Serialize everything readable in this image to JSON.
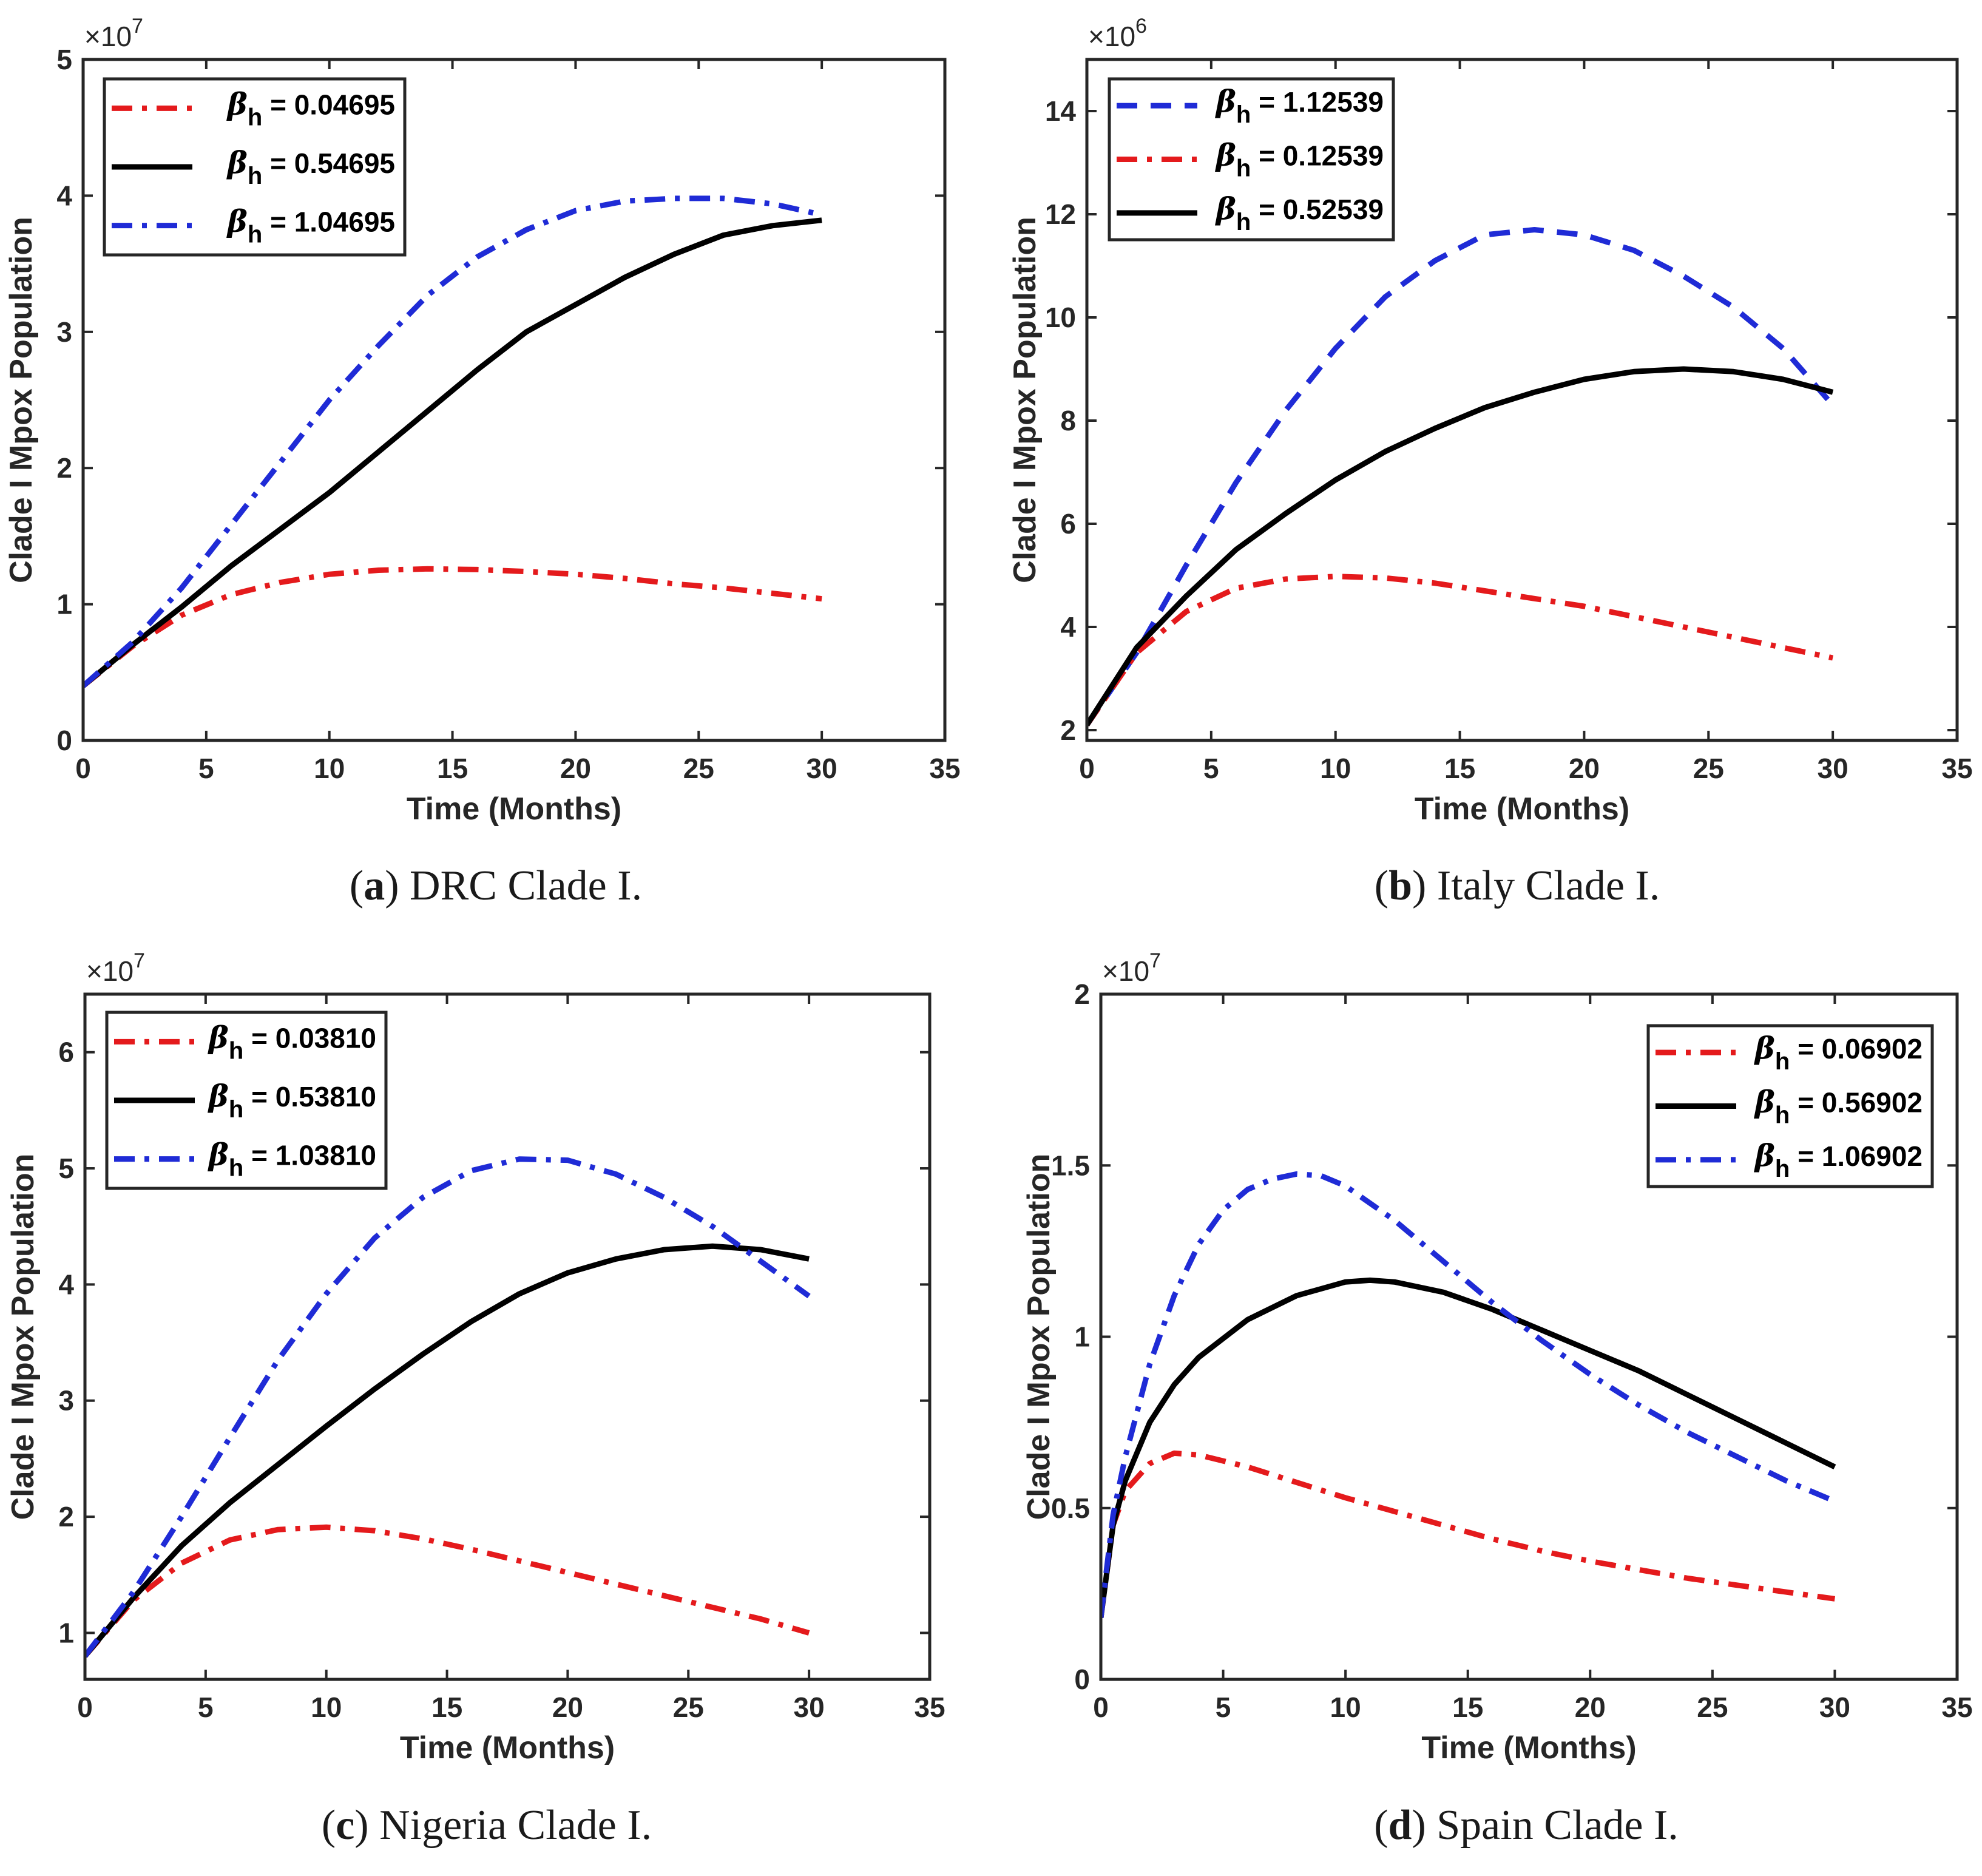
{
  "chart_data": [
    {
      "type": "line",
      "panel": "a",
      "caption_letter": "a",
      "caption_text": "DRC Clade I.",
      "xlabel": "Time (Months)",
      "ylabel": "Clade I Mpox Population",
      "multiplier_base": "×10",
      "multiplier_exp": "7",
      "xlim": [
        0,
        35
      ],
      "ylim": [
        0,
        5
      ],
      "xticks": [
        0,
        5,
        10,
        15,
        20,
        25,
        30,
        35
      ],
      "yticks": [
        0,
        1,
        2,
        3,
        4,
        5
      ],
      "legend_position": "top-left",
      "series": [
        {
          "name": "βh = 0.04695",
          "symbol": "β",
          "subscript": "h",
          "value_text": " = 0.04695",
          "color": "#e41a1c",
          "style": "dashdot",
          "x": [
            0,
            2,
            4,
            6,
            8,
            10,
            12,
            14,
            16,
            18,
            20,
            22,
            24,
            26,
            28,
            30
          ],
          "y": [
            0.4,
            0.69,
            0.92,
            1.07,
            1.16,
            1.22,
            1.25,
            1.26,
            1.255,
            1.24,
            1.22,
            1.19,
            1.15,
            1.12,
            1.08,
            1.04
          ]
        },
        {
          "name": "βh = 0.54695",
          "symbol": "β",
          "subscript": "h",
          "value_text": " = 0.54695",
          "color": "#000000",
          "style": "solid",
          "x": [
            0,
            2,
            4,
            6,
            8,
            10,
            12,
            14,
            16,
            18,
            20,
            22,
            24,
            26,
            28,
            30
          ],
          "y": [
            0.4,
            0.7,
            0.98,
            1.28,
            1.55,
            1.82,
            2.12,
            2.42,
            2.72,
            3.0,
            3.2,
            3.4,
            3.57,
            3.71,
            3.78,
            3.82
          ]
        },
        {
          "name": "βh = 1.04695",
          "symbol": "β",
          "subscript": "h",
          "value_text": " = 1.04695",
          "color": "#1f2bd6",
          "style": "dashdot",
          "x": [
            0,
            2,
            4,
            6,
            8,
            10,
            12,
            14,
            16,
            18,
            20,
            22,
            24,
            26,
            28,
            30
          ],
          "y": [
            0.4,
            0.72,
            1.12,
            1.58,
            2.04,
            2.5,
            2.9,
            3.27,
            3.55,
            3.75,
            3.89,
            3.96,
            3.98,
            3.98,
            3.94,
            3.86
          ]
        }
      ]
    },
    {
      "type": "line",
      "panel": "b",
      "caption_letter": "b",
      "caption_text": "Italy Clade I.",
      "xlabel": "Time (Months)",
      "ylabel": "Clade I Mpox Population",
      "multiplier_base": "×10",
      "multiplier_exp": "6",
      "xlim": [
        0,
        35
      ],
      "ylim": [
        1.8,
        15
      ],
      "xticks": [
        0,
        5,
        10,
        15,
        20,
        25,
        30,
        35
      ],
      "yticks": [
        2,
        4,
        6,
        8,
        10,
        12,
        14
      ],
      "legend_position": "top-left",
      "series": [
        {
          "name": "βh = 1.12539",
          "symbol": "β",
          "subscript": "h",
          "value_text": " = 1.12539",
          "color": "#1f2bd6",
          "style": "dashed",
          "x": [
            0,
            2,
            4,
            6,
            8,
            10,
            12,
            14,
            16,
            18,
            20,
            22,
            24,
            26,
            28,
            30
          ],
          "y": [
            2.1,
            3.5,
            5.2,
            6.8,
            8.2,
            9.4,
            10.4,
            11.1,
            11.6,
            11.7,
            11.6,
            11.3,
            10.8,
            10.2,
            9.4,
            8.3
          ]
        },
        {
          "name": "βh = 0.12539",
          "symbol": "β",
          "subscript": "h",
          "value_text": " = 0.12539",
          "color": "#e41a1c",
          "style": "dashdot",
          "x": [
            0,
            2,
            4,
            6,
            8,
            10,
            12,
            14,
            16,
            18,
            20,
            22,
            24,
            26,
            28,
            30
          ],
          "y": [
            2.1,
            3.5,
            4.3,
            4.75,
            4.93,
            4.98,
            4.95,
            4.85,
            4.7,
            4.55,
            4.4,
            4.2,
            4.0,
            3.8,
            3.6,
            3.4
          ]
        },
        {
          "name": "βh = 0.52539",
          "symbol": "β",
          "subscript": "h",
          "value_text": " = 0.52539",
          "color": "#000000",
          "style": "solid",
          "x": [
            0,
            2,
            4,
            6,
            8,
            10,
            12,
            14,
            16,
            18,
            20,
            22,
            24,
            26,
            28,
            30
          ],
          "y": [
            2.1,
            3.6,
            4.6,
            5.5,
            6.2,
            6.85,
            7.4,
            7.85,
            8.25,
            8.55,
            8.8,
            8.95,
            9.0,
            8.95,
            8.8,
            8.55
          ]
        }
      ]
    },
    {
      "type": "line",
      "panel": "c",
      "caption_letter": "c",
      "caption_text": "Nigeria Clade I.",
      "xlabel": "Time (Months)",
      "ylabel": "Clade I Mpox Population",
      "multiplier_base": "×10",
      "multiplier_exp": "7",
      "xlim": [
        0,
        35
      ],
      "ylim": [
        0.6,
        6.5
      ],
      "xticks": [
        0,
        5,
        10,
        15,
        20,
        25,
        30,
        35
      ],
      "yticks": [
        1,
        2,
        3,
        4,
        5,
        6
      ],
      "legend_position": "top-left",
      "series": [
        {
          "name": "βh = 0.03810",
          "symbol": "β",
          "subscript": "h",
          "value_text": " = 0.03810",
          "color": "#e41a1c",
          "style": "dashdot",
          "x": [
            0,
            2,
            4,
            6,
            8,
            10,
            12,
            14,
            16,
            18,
            20,
            22,
            24,
            26,
            28,
            30
          ],
          "y": [
            0.8,
            1.28,
            1.6,
            1.8,
            1.89,
            1.91,
            1.88,
            1.81,
            1.72,
            1.62,
            1.52,
            1.42,
            1.32,
            1.22,
            1.12,
            1.0
          ]
        },
        {
          "name": "βh = 0.53810",
          "symbol": "β",
          "subscript": "h",
          "value_text": " = 0.53810",
          "color": "#000000",
          "style": "solid",
          "x": [
            0,
            2,
            4,
            6,
            8,
            10,
            12,
            14,
            16,
            18,
            20,
            22,
            24,
            26,
            28,
            30
          ],
          "y": [
            0.8,
            1.3,
            1.75,
            2.12,
            2.45,
            2.78,
            3.1,
            3.4,
            3.68,
            3.92,
            4.1,
            4.22,
            4.3,
            4.33,
            4.3,
            4.22
          ]
        },
        {
          "name": "βh = 1.03810",
          "symbol": "β",
          "subscript": "h",
          "value_text": " = 1.03810",
          "color": "#1f2bd6",
          "style": "dashdot",
          "x": [
            0,
            2,
            4,
            6,
            8,
            10,
            12,
            14,
            16,
            18,
            20,
            22,
            24,
            26,
            28,
            30
          ],
          "y": [
            0.8,
            1.35,
            2.0,
            2.68,
            3.35,
            3.92,
            4.4,
            4.75,
            4.98,
            5.08,
            5.07,
            4.95,
            4.75,
            4.5,
            4.2,
            3.9
          ]
        }
      ]
    },
    {
      "type": "line",
      "panel": "d",
      "caption_letter": "d",
      "caption_text": "Spain Clade I.",
      "xlabel": "Time (Months)",
      "ylabel": "Clade I Mpox Population",
      "multiplier_base": "×10",
      "multiplier_exp": "7",
      "xlim": [
        0,
        35
      ],
      "ylim": [
        0,
        2
      ],
      "xticks": [
        0,
        5,
        10,
        15,
        20,
        25,
        30,
        35
      ],
      "yticks": [
        0,
        0.5,
        1,
        1.5,
        2
      ],
      "ytick_labels": [
        "0",
        "0.5",
        "1",
        "1.5",
        "2"
      ],
      "legend_position": "top-right",
      "series": [
        {
          "name": "βh = 0.06902",
          "symbol": "β",
          "subscript": "h",
          "value_text": " = 0.06902",
          "color": "#e41a1c",
          "style": "dashdot",
          "x": [
            0,
            0.5,
            1,
            2,
            3,
            4,
            6,
            8,
            10,
            12,
            14,
            16,
            18,
            20,
            22,
            24,
            26,
            28,
            30
          ],
          "y": [
            0.18,
            0.45,
            0.55,
            0.63,
            0.66,
            0.655,
            0.62,
            0.575,
            0.53,
            0.49,
            0.45,
            0.41,
            0.375,
            0.345,
            0.32,
            0.295,
            0.275,
            0.255,
            0.235
          ]
        },
        {
          "name": "βh = 0.56902",
          "symbol": "β",
          "subscript": "h",
          "value_text": " = 0.56902",
          "color": "#000000",
          "style": "solid",
          "x": [
            0,
            0.5,
            1,
            2,
            3,
            4,
            6,
            8,
            10,
            11,
            12,
            14,
            16,
            18,
            20,
            22,
            24,
            26,
            28,
            30
          ],
          "y": [
            0.18,
            0.45,
            0.58,
            0.75,
            0.86,
            0.94,
            1.05,
            1.12,
            1.16,
            1.165,
            1.16,
            1.13,
            1.08,
            1.02,
            0.96,
            0.9,
            0.83,
            0.76,
            0.69,
            0.62
          ]
        },
        {
          "name": "βh = 1.06902",
          "symbol": "β",
          "subscript": "h",
          "value_text": " = 1.06902",
          "color": "#1f2bd6",
          "style": "dashdot",
          "x": [
            0,
            0.5,
            1,
            2,
            3,
            4,
            5,
            6,
            7,
            8,
            9,
            10,
            12,
            14,
            16,
            18,
            20,
            22,
            24,
            26,
            28,
            30
          ],
          "y": [
            0.18,
            0.48,
            0.65,
            0.92,
            1.12,
            1.27,
            1.37,
            1.43,
            1.46,
            1.475,
            1.47,
            1.44,
            1.34,
            1.22,
            1.1,
            0.99,
            0.89,
            0.8,
            0.72,
            0.65,
            0.58,
            0.52
          ]
        }
      ]
    }
  ]
}
